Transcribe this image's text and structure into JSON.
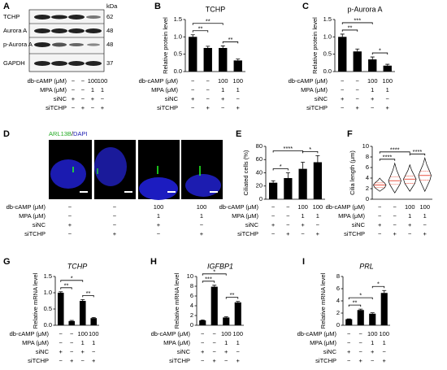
{
  "panel_labels": [
    "A",
    "B",
    "C",
    "D",
    "E",
    "F",
    "G",
    "H",
    "I"
  ],
  "conditions": {
    "rows": [
      {
        "label": "db-cAMP (μM)",
        "cells": [
          "−",
          "−",
          "100",
          "100"
        ]
      },
      {
        "label": "MPA (μM)",
        "cells": [
          "−",
          "−",
          "1",
          "1"
        ]
      },
      {
        "label": "siNC",
        "cells": [
          "+",
          "−",
          "+",
          "−"
        ]
      },
      {
        "label": "siTCHP",
        "cells": [
          "−",
          "+",
          "−",
          "+"
        ]
      }
    ]
  },
  "blot": {
    "unit": "kDa",
    "proteins": [
      "TCHP",
      "Aurora A",
      "p-Aurora A",
      "GAPDH"
    ],
    "sizes": [
      "62",
      "48",
      "48",
      "37"
    ]
  },
  "microscopy": {
    "stains": [
      "ARL13B",
      "DAPI"
    ],
    "separator": "/"
  },
  "chart_data": [
    {
      "type": "bar",
      "title": "TCHP",
      "ylabel": "Relative protein level",
      "values": [
        1.0,
        0.68,
        0.68,
        0.32
      ],
      "errors": [
        0.06,
        0.05,
        0.06,
        0.04
      ],
      "ylim": [
        0,
        1.5
      ],
      "yticks": [
        {
          "value": 0,
          "label": "0.0"
        },
        0.5,
        {
          "value": 1,
          "label": "1.0"
        },
        1.5
      ],
      "color": "#000000",
      "annotations": [
        "**",
        "**",
        "**"
      ]
    },
    {
      "type": "bar",
      "title": "p-Aurora A",
      "ylabel": "Relative protein level",
      "values": [
        1.0,
        0.58,
        0.35,
        0.17
      ],
      "errors": [
        0.08,
        0.07,
        0.07,
        0.04
      ],
      "ylim": [
        0,
        1.5
      ],
      "yticks": [
        {
          "value": 0,
          "label": "0.0"
        },
        0.5,
        {
          "value": 1,
          "label": "1.0"
        },
        1.5
      ],
      "color": "#000000",
      "annotations": [
        "**",
        "***",
        "*"
      ]
    },
    {
      "type": "bar",
      "ylabel": "Ciliated cells (%)",
      "values": [
        25,
        32,
        46,
        56
      ],
      "errors": [
        3,
        8,
        10,
        10
      ],
      "ylim": [
        0,
        80
      ],
      "yticks": [
        0,
        20,
        40,
        60,
        80
      ],
      "color": "#000000",
      "annotations": [
        "*",
        "****",
        "*"
      ]
    },
    {
      "type": "violin",
      "ylabel": "Cilia length (μm)",
      "min": [
        1.5,
        1.2,
        1.5,
        1.5
      ],
      "q1": [
        2.2,
        2.8,
        3.0,
        3.6
      ],
      "median": [
        2.7,
        3.5,
        3.8,
        4.5
      ],
      "q3": [
        3.1,
        4.2,
        4.4,
        5.3
      ],
      "max": [
        4.0,
        6.8,
        6.5,
        7.8
      ],
      "ylim": [
        0,
        10
      ],
      "yticks": [
        0,
        2,
        4,
        6,
        8,
        10
      ],
      "color": "#e8412e",
      "annotations": [
        "****",
        "****",
        "****"
      ]
    },
    {
      "type": "bar",
      "title": "TCHP",
      "title_italic": true,
      "ylabel": "Relative mRNA level",
      "values": [
        1.0,
        0.13,
        0.75,
        0.22
      ],
      "errors": [
        0.03,
        0.02,
        0.04,
        0.02
      ],
      "ylim": [
        0,
        1.5
      ],
      "yticks": [
        {
          "value": 0,
          "label": "0.0"
        },
        0.5,
        {
          "value": 1,
          "label": "1.0"
        },
        1.5
      ],
      "color": "#000000",
      "annotations": [
        "*",
        "**",
        "**"
      ]
    },
    {
      "type": "bar",
      "title": "IGFBP1",
      "title_italic": true,
      "ylabel": "Relative mRNA level",
      "values": [
        1.0,
        7.9,
        1.6,
        4.7
      ],
      "errors": [
        0.1,
        0.3,
        0.15,
        0.2
      ],
      "ylim": [
        0,
        10
      ],
      "yticks": [
        0,
        2,
        4,
        6,
        8,
        10
      ],
      "color": "#000000",
      "annotations": [
        "*",
        "***",
        "**"
      ]
    },
    {
      "type": "bar",
      "title": "PRL",
      "title_italic": true,
      "ylabel": "Relative mRNA level",
      "values": [
        1.0,
        2.5,
        1.9,
        5.3
      ],
      "errors": [
        0.05,
        0.15,
        0.15,
        0.4
      ],
      "ylim": [
        0,
        8
      ],
      "yticks": [
        0,
        2,
        4,
        6,
        8
      ],
      "color": "#000000",
      "annotations": [
        "**",
        "*",
        "*"
      ]
    }
  ]
}
